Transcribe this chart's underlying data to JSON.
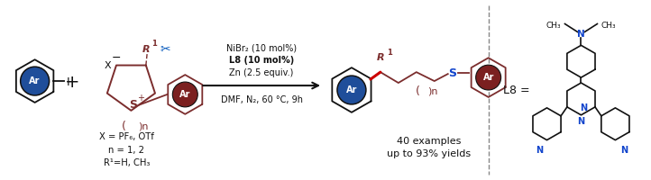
{
  "background_color": "#ffffff",
  "fig_width": 7.22,
  "fig_height": 2.0,
  "dpi": 100,
  "reaction_conditions": [
    "NiBr₂ (10 mol%)",
    "L8 (10 mol%)",
    "Zn (2.5 equiv.)",
    "DMF, N₂, 60 °C, 9h"
  ],
  "conditions_bold_lines": [
    1
  ],
  "below_reagent_text": [
    "X = PF₆, OTf",
    "n = 1, 2",
    "R¹=H, CH₃"
  ],
  "product_text": [
    "40 examples",
    "up to 93% yields"
  ],
  "dark_red": "#7B2D2D",
  "dark_red2": "#8B1A1A",
  "blue_ar": "#1F4E9A",
  "highlight_red": "#CC0000",
  "black": "#111111",
  "blue_n": "#1144CC"
}
